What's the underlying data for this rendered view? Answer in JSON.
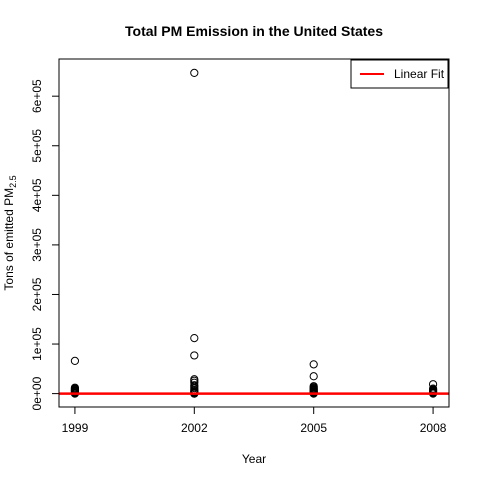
{
  "chart_data": {
    "type": "scatter",
    "title": "Total PM Emission in the United States",
    "xlabel": "Year",
    "ylabel": {
      "main": "Tons of emitted PM",
      "subscript": "2.5"
    },
    "xticks": [
      1999,
      2002,
      2005,
      2008
    ],
    "xlim": [
      1998.6,
      2008.4
    ],
    "yticks": [
      {
        "value": 0,
        "label": "0e+00"
      },
      {
        "value": 100000,
        "label": "1e+05"
      },
      {
        "value": 200000,
        "label": "2e+05"
      },
      {
        "value": 300000,
        "label": "3e+05"
      },
      {
        "value": 400000,
        "label": "4e+05"
      },
      {
        "value": 500000,
        "label": "5e+05"
      },
      {
        "value": 600000,
        "label": "6e+05"
      }
    ],
    "ylim": [
      -27000,
      675000
    ],
    "grid": false,
    "legend": {
      "position": "top-right",
      "entries": [
        {
          "label": "Linear Fit",
          "color": "#ff0000"
        }
      ]
    },
    "marker": "open-circle",
    "series": [
      {
        "kind": "points",
        "x": [
          1999,
          1999,
          1999,
          1999,
          1999,
          1999,
          1999,
          1999,
          1999,
          1999,
          1999,
          1999,
          2002,
          2002,
          2002,
          2002,
          2002,
          2002,
          2002,
          2002,
          2002,
          2002,
          2002,
          2002,
          2002,
          2002,
          2002,
          2002,
          2002,
          2002,
          2005,
          2005,
          2005,
          2005,
          2005,
          2005,
          2005,
          2005,
          2005,
          2005,
          2005,
          2005,
          2005,
          2005,
          2008,
          2008,
          2008,
          2008,
          2008,
          2008,
          2008,
          2008,
          2008
        ],
        "y": [
          66000,
          12000,
          10000,
          8500,
          7000,
          5500,
          4500,
          3000,
          2000,
          1000,
          500,
          0,
          647000,
          112000,
          77000,
          29000,
          26000,
          22000,
          17000,
          14000,
          11000,
          8000,
          6000,
          4000,
          2500,
          1500,
          800,
          300,
          100,
          0,
          59000,
          35000,
          15000,
          13000,
          11000,
          9500,
          8000,
          6500,
          5000,
          3500,
          2500,
          1500,
          500,
          0,
          19000,
          10000,
          8000,
          6500,
          5000,
          3500,
          2000,
          1000,
          0
        ]
      },
      {
        "kind": "line",
        "name": "Linear Fit",
        "color": "#ff0000",
        "x": [
          1998.6,
          2008.4
        ],
        "y": [
          0,
          0
        ]
      }
    ]
  }
}
